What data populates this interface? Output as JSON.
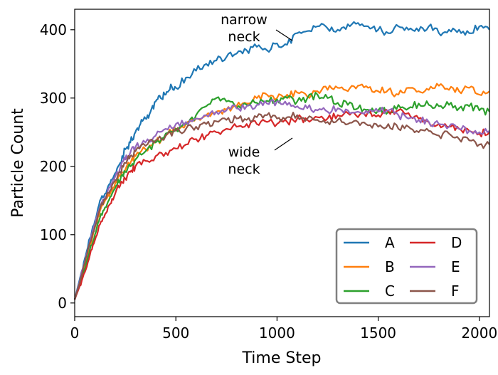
{
  "chart_data": {
    "type": "line",
    "title": "",
    "xlabel": "Time Step",
    "ylabel": "Particle Count",
    "xlim": [
      0,
      2050
    ],
    "ylim": [
      -20,
      430
    ],
    "xticks": [
      0,
      500,
      1000,
      1500,
      2000
    ],
    "yticks": [
      0,
      100,
      200,
      300,
      400
    ],
    "grid": false,
    "legend": {
      "placement": "bottom-right",
      "columns": 2
    },
    "annotations": [
      {
        "lines": [
          "narrow",
          "neck"
        ],
        "points_to": {
          "x": 1060,
          "y": 380
        }
      },
      {
        "lines": [
          "wide",
          "neck"
        ],
        "points_to": {
          "x": 1060,
          "y": 245
        }
      }
    ],
    "series": [
      {
        "name": "A",
        "color": "#1f77b4",
        "x": [
          0,
          25,
          50,
          75,
          100,
          125,
          150,
          175,
          200,
          225,
          250,
          275,
          300,
          325,
          350,
          375,
          400,
          425,
          450,
          475,
          500,
          550,
          600,
          650,
          700,
          750,
          800,
          850,
          900,
          950,
          1000,
          1050,
          1100,
          1150,
          1200,
          1250,
          1300,
          1350,
          1400,
          1450,
          1500,
          1550,
          1600,
          1650,
          1700,
          1750,
          1800,
          1850,
          1900,
          1950,
          2000,
          2050
        ],
        "values": [
          5,
          35,
          65,
          95,
          120,
          150,
          160,
          175,
          190,
          205,
          225,
          235,
          250,
          262,
          270,
          280,
          295,
          300,
          305,
          320,
          315,
          330,
          340,
          350,
          355,
          360,
          365,
          370,
          375,
          370,
          380,
          378,
          395,
          398,
          405,
          402,
          400,
          408,
          410,
          405,
          400,
          395,
          405,
          400,
          398,
          405,
          395,
          400,
          400,
          395,
          405,
          400
        ]
      },
      {
        "name": "B",
        "color": "#ff7f0e",
        "x": [
          0,
          25,
          50,
          75,
          100,
          125,
          150,
          175,
          200,
          225,
          250,
          275,
          300,
          350,
          400,
          450,
          500,
          550,
          600,
          650,
          700,
          750,
          800,
          850,
          900,
          950,
          1000,
          1050,
          1100,
          1150,
          1200,
          1250,
          1300,
          1350,
          1400,
          1450,
          1500,
          1550,
          1600,
          1650,
          1700,
          1750,
          1800,
          1850,
          1900,
          1950,
          2000,
          2050
        ],
        "values": [
          5,
          30,
          55,
          85,
          110,
          135,
          150,
          160,
          175,
          185,
          195,
          205,
          215,
          225,
          235,
          245,
          255,
          262,
          270,
          275,
          280,
          283,
          288,
          292,
          300,
          305,
          300,
          305,
          308,
          302,
          310,
          312,
          315,
          310,
          318,
          315,
          310,
          312,
          305,
          315,
          310,
          312,
          318,
          312,
          310,
          315,
          305,
          310
        ]
      },
      {
        "name": "C",
        "color": "#2ca02c",
        "x": [
          0,
          25,
          50,
          75,
          100,
          125,
          150,
          175,
          200,
          225,
          250,
          275,
          300,
          350,
          400,
          450,
          500,
          550,
          600,
          650,
          700,
          750,
          800,
          850,
          900,
          950,
          1000,
          1050,
          1100,
          1150,
          1200,
          1250,
          1300,
          1350,
          1400,
          1450,
          1500,
          1550,
          1600,
          1650,
          1700,
          1750,
          1800,
          1850,
          1900,
          1950,
          2000,
          2050
        ],
        "values": [
          5,
          28,
          50,
          78,
          100,
          125,
          140,
          155,
          168,
          180,
          192,
          200,
          210,
          222,
          235,
          248,
          255,
          262,
          275,
          288,
          300,
          295,
          285,
          290,
          293,
          296,
          298,
          300,
          295,
          300,
          305,
          300,
          293,
          290,
          285,
          283,
          282,
          280,
          290,
          285,
          292,
          290,
          288,
          290,
          285,
          288,
          282,
          280
        ]
      },
      {
        "name": "D",
        "color": "#d62728",
        "x": [
          0,
          25,
          50,
          75,
          100,
          125,
          150,
          175,
          200,
          225,
          250,
          275,
          300,
          350,
          400,
          450,
          500,
          550,
          600,
          650,
          700,
          750,
          800,
          850,
          900,
          950,
          1000,
          1050,
          1100,
          1150,
          1200,
          1250,
          1300,
          1350,
          1400,
          1450,
          1500,
          1550,
          1600,
          1650,
          1700,
          1750,
          1800,
          1850,
          1900,
          1950,
          2000,
          2050
        ],
        "values": [
          5,
          25,
          45,
          70,
          92,
          115,
          130,
          145,
          160,
          172,
          182,
          192,
          200,
          208,
          215,
          220,
          226,
          232,
          240,
          245,
          250,
          255,
          258,
          262,
          262,
          265,
          262,
          265,
          270,
          268,
          272,
          270,
          275,
          278,
          272,
          280,
          275,
          280,
          282,
          278,
          270,
          265,
          262,
          258,
          255,
          252,
          248,
          250
        ]
      },
      {
        "name": "E",
        "color": "#9467bd",
        "x": [
          0,
          25,
          50,
          75,
          100,
          125,
          150,
          175,
          200,
          225,
          250,
          275,
          300,
          350,
          400,
          450,
          500,
          550,
          600,
          650,
          700,
          750,
          800,
          850,
          900,
          950,
          1000,
          1050,
          1100,
          1150,
          1200,
          1250,
          1300,
          1350,
          1400,
          1450,
          1500,
          1550,
          1600,
          1650,
          1700,
          1750,
          1800,
          1850,
          1900,
          1950,
          2000,
          2050
        ],
        "values": [
          5,
          32,
          60,
          90,
          115,
          140,
          155,
          170,
          185,
          198,
          210,
          220,
          228,
          235,
          245,
          255,
          262,
          265,
          270,
          275,
          280,
          282,
          285,
          288,
          290,
          292,
          295,
          290,
          288,
          285,
          282,
          280,
          285,
          282,
          280,
          278,
          280,
          282,
          275,
          270,
          268,
          265,
          262,
          258,
          255,
          252,
          250,
          252
        ]
      },
      {
        "name": "F",
        "color": "#8c564b",
        "x": [
          0,
          25,
          50,
          75,
          100,
          125,
          150,
          175,
          200,
          225,
          250,
          275,
          300,
          350,
          400,
          450,
          500,
          550,
          600,
          650,
          700,
          750,
          800,
          850,
          900,
          950,
          1000,
          1050,
          1100,
          1150,
          1200,
          1250,
          1300,
          1350,
          1400,
          1450,
          1500,
          1550,
          1600,
          1650,
          1700,
          1750,
          1800,
          1850,
          1900,
          1950,
          2000,
          2050
        ],
        "values": [
          5,
          30,
          58,
          88,
          112,
          138,
          152,
          165,
          180,
          192,
          205,
          215,
          222,
          230,
          238,
          245,
          252,
          255,
          258,
          262,
          266,
          268,
          270,
          268,
          272,
          275,
          270,
          272,
          275,
          270,
          268,
          265,
          268,
          262,
          265,
          260,
          258,
          262,
          255,
          258,
          250,
          252,
          245,
          248,
          240,
          238,
          232,
          232
        ]
      }
    ]
  }
}
